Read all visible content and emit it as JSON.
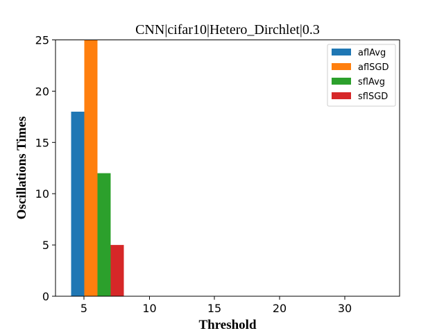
{
  "chart_data": {
    "type": "bar",
    "title": "CNN|cifar10|Hetero_Dirchlet|0.3",
    "xlabel": "Threshold",
    "ylabel": "Oscillations Times",
    "x_ticks": [
      5,
      10,
      15,
      20,
      30
    ],
    "y_ticks": [
      0,
      5,
      10,
      15,
      20,
      25
    ],
    "ylim": [
      0,
      25
    ],
    "grid": false,
    "legend_position": "top-right",
    "series": [
      {
        "name": "aflAvg",
        "color": "#1f77b4",
        "values": [
          18,
          0,
          0,
          0,
          0
        ]
      },
      {
        "name": "aflSGD",
        "color": "#ff7f0e",
        "values": [
          25,
          0,
          0,
          0,
          0
        ]
      },
      {
        "name": "sflAvg",
        "color": "#2ca02c",
        "values": [
          12,
          0,
          0,
          0,
          0
        ]
      },
      {
        "name": "sflSGD",
        "color": "#d62728",
        "values": [
          5,
          0,
          0,
          0,
          0
        ]
      }
    ]
  }
}
